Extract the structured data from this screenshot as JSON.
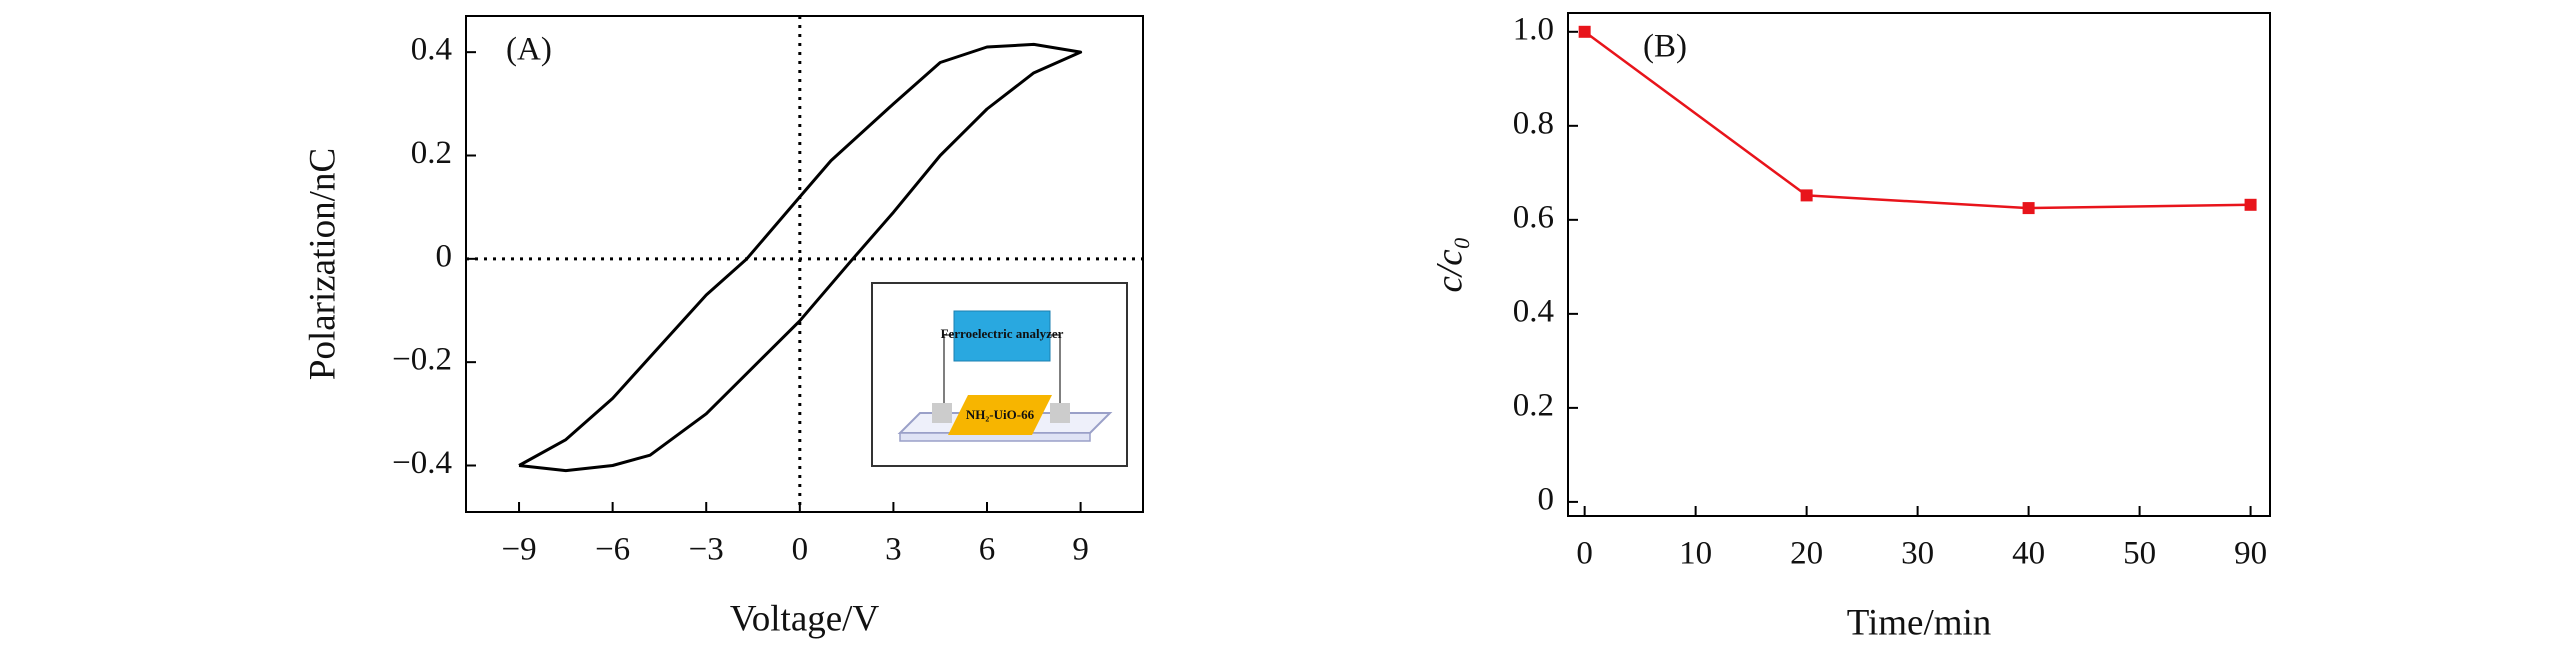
{
  "chart_data": [
    {
      "type": "line",
      "panel_label": "(A)",
      "x_label": "Voltage/V",
      "y_label": "Polarization/nC",
      "xlim": [
        -10.7,
        11
      ],
      "ylim": [
        -0.49,
        0.47
      ],
      "xticks": [
        {
          "value": -9,
          "label": "−9"
        },
        {
          "value": -6,
          "label": "−6"
        },
        {
          "value": -3,
          "label": "−3"
        },
        0,
        3,
        6,
        9
      ],
      "yticks": [
        {
          "value": -0.4,
          "label": "−0.4"
        },
        {
          "value": -0.2,
          "label": "−0.2"
        },
        0,
        0.2,
        0.4
      ],
      "zero_lines": true,
      "inset": {
        "instrument": "Ferroelectric analyzer",
        "sample": "NH₂-UiO-66"
      },
      "series": [
        {
          "color": "#000000",
          "x": [
            -9,
            -7.5,
            -6,
            -4.8,
            -3,
            -1,
            0,
            1.7,
            3,
            4.5,
            6,
            7.5,
            9,
            7.5,
            6,
            4.5,
            3,
            1,
            0,
            -1.7,
            -3,
            -4.5,
            -6,
            -7.5,
            -9
          ],
          "values": [
            -0.4,
            -0.41,
            -0.4,
            -0.38,
            -0.3,
            -0.18,
            -0.12,
            0,
            0.09,
            0.2,
            0.29,
            0.36,
            0.4,
            0.415,
            0.41,
            0.38,
            0.3,
            0.19,
            0.12,
            0,
            -0.07,
            -0.17,
            -0.27,
            -0.35,
            -0.4
          ]
        }
      ]
    },
    {
      "type": "line",
      "panel_label": "(B)",
      "x_label": "Time/min",
      "y_label": "c/c₀",
      "xlim": [
        -1.5,
        97
      ],
      "ylim": [
        -0.03,
        1.04
      ],
      "x_tick_spacing": "even",
      "xticks": [
        0,
        10,
        20,
        30,
        40,
        50,
        90
      ],
      "yticks": [
        0,
        0.2,
        0.4,
        0.6,
        0.8,
        {
          "value": 1,
          "label": "1.0"
        }
      ],
      "markers": true,
      "series": [
        {
          "color": "#e8141b",
          "x": [
            0,
            20,
            40,
            90
          ],
          "values": [
            1.0,
            0.652,
            0.625,
            0.632
          ]
        }
      ]
    }
  ]
}
